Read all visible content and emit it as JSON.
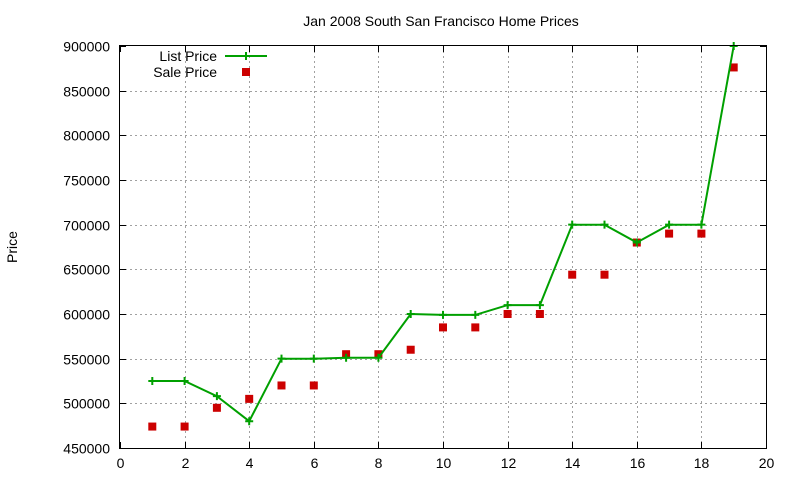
{
  "chart_data": {
    "type": "line",
    "title": "Jan 2008 South San Francisco Home Prices",
    "xlabel": "",
    "ylabel": "Price",
    "xlim": [
      0,
      20
    ],
    "ylim": [
      450000,
      900000
    ],
    "xticks": [
      "0",
      "2",
      "4",
      "6",
      "8",
      "10",
      "12",
      "14",
      "16",
      "18",
      "20"
    ],
    "yticks": [
      "450000",
      "500000",
      "550000",
      "600000",
      "650000",
      "700000",
      "750000",
      "800000",
      "850000",
      "900000"
    ],
    "grid": true,
    "legend_position": "top-left",
    "series": [
      {
        "name": "List Price",
        "style": "line+plus",
        "color": "#00a000",
        "x": [
          1,
          2,
          3,
          4,
          5,
          6,
          7,
          8,
          9,
          10,
          11,
          12,
          13,
          14,
          15,
          16,
          17,
          18,
          19
        ],
        "y": [
          525000,
          525000,
          508000,
          480000,
          550000,
          550000,
          551000,
          551000,
          600000,
          599000,
          599000,
          610000,
          610000,
          700000,
          700000,
          680000,
          700000,
          700000,
          900000
        ]
      },
      {
        "name": "Sale Price",
        "style": "square",
        "color": "#cc0000",
        "x": [
          1,
          2,
          3,
          4,
          5,
          6,
          7,
          8,
          9,
          10,
          11,
          12,
          13,
          14,
          15,
          16,
          17,
          18,
          19
        ],
        "y": [
          474000,
          474000,
          495000,
          505000,
          520000,
          520000,
          555000,
          555000,
          560000,
          585000,
          585000,
          600000,
          600000,
          644000,
          644000,
          680000,
          690000,
          690000,
          876000
        ]
      }
    ]
  }
}
